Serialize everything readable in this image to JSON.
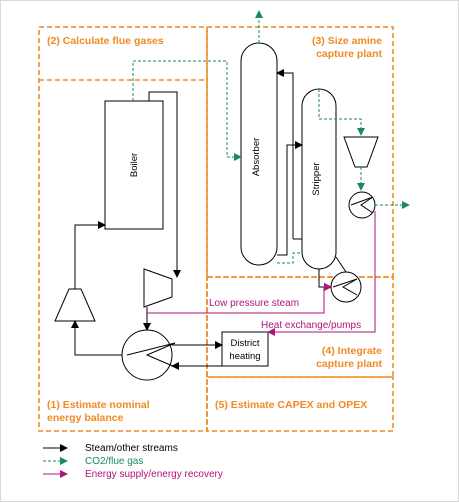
{
  "sections": {
    "s1": {
      "line1": "(1) Estimate nominal",
      "line2": "energy balance"
    },
    "s2": {
      "line1": "(2) Calculate flue gases"
    },
    "s3": {
      "line1": "(3) Size amine",
      "line2": "capture plant"
    },
    "s4": {
      "line1": "(4) Integrate",
      "line2": "capture plant"
    },
    "s5": {
      "line1": "(5) Estimate CAPEX and OPEX"
    }
  },
  "units": {
    "boiler": "Boiler",
    "absorber": "Absorber",
    "stripper": "Stripper",
    "district_heating_line1": "District",
    "district_heating_line2": "heating"
  },
  "flows": {
    "low_pressure_steam": "Low pressure steam",
    "heat_exchange_pumps": "Heat exchange/pumps"
  },
  "legend": {
    "steam": "Steam/other streams",
    "co2": "CO2/flue gas",
    "energy": "Energy supply/energy recovery"
  },
  "colors": {
    "section_border": "#f08a24",
    "steam": "#000000",
    "co2": "#1a8a66",
    "energy": "#b0137a"
  }
}
